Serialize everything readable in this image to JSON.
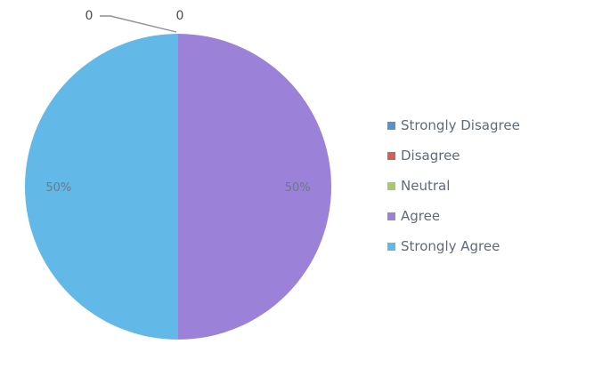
{
  "chart_data": {
    "type": "pie",
    "categories": [
      "Strongly Disagree",
      "Disagree",
      "Neutral",
      "Agree",
      "Strongly Agree"
    ],
    "values": [
      0,
      0,
      0,
      50,
      50
    ],
    "slice_labels": [
      "0",
      "0",
      "",
      "50%",
      "50%"
    ],
    "colors": [
      "#4f81bd",
      "#c0504d",
      "#9bbb59",
      "#8064a2",
      "#4bacc6"
    ],
    "slice_fills": [
      "#5c8fd0",
      "#d06060",
      "#a9c869",
      "#9b82d8",
      "#62b8e6"
    ],
    "legend_position": "right"
  }
}
